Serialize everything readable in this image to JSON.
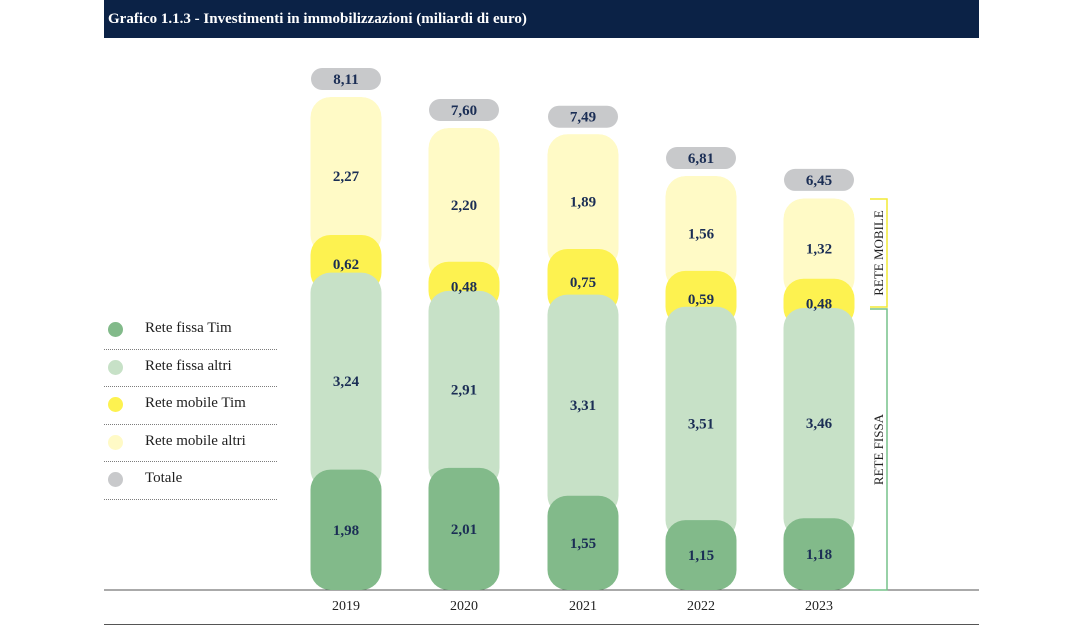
{
  "title": "Grafico 1.1.3 - Investimenti in immobilizzazioni (miliardi di euro)",
  "legend": [
    {
      "label": "Rete fissa Tim",
      "color": "#82ba8a"
    },
    {
      "label": "Rete fissa altri",
      "color": "#c7e1c7"
    },
    {
      "label": "Rete mobile Tim",
      "color": "#fdf250"
    },
    {
      "label": "Rete mobile altri",
      "color": "#fffac6"
    },
    {
      "label": "Totale",
      "color": "#c8c9cb"
    }
  ],
  "group_labels": {
    "mobile": "RETE MOBILE",
    "fissa": "RETE FISSA",
    "mobile_color": "#f2ea35",
    "fissa_color": "#77c28a"
  },
  "chart_data": {
    "type": "bar",
    "stacked": true,
    "title": "Grafico 1.1.3 - Investimenti in immobilizzazioni (miliardi di euro)",
    "categories": [
      "2019",
      "2020",
      "2021",
      "2022",
      "2023"
    ],
    "series": [
      {
        "name": "Rete fissa Tim",
        "values": [
          1.98,
          2.01,
          1.55,
          1.15,
          1.18
        ],
        "labels": [
          "1,98",
          "2,01",
          "1,55",
          "1,15",
          "1,18"
        ],
        "color": "#82ba8a"
      },
      {
        "name": "Rete fissa altri",
        "values": [
          3.24,
          2.91,
          3.31,
          3.51,
          3.46
        ],
        "labels": [
          "3,24",
          "2,91",
          "3,31",
          "3,51",
          "3,46"
        ],
        "color": "#c7e1c7"
      },
      {
        "name": "Rete mobile Tim",
        "values": [
          0.62,
          0.48,
          0.75,
          0.59,
          0.48
        ],
        "labels": [
          "0,62",
          "0,48",
          "0,75",
          "0,59",
          "0,48"
        ],
        "color": "#fdf250"
      },
      {
        "name": "Rete mobile altri",
        "values": [
          2.27,
          2.2,
          1.89,
          1.56,
          1.32
        ],
        "labels": [
          "2,27",
          "2,20",
          "1,89",
          "1,56",
          "1,32"
        ],
        "color": "#fffac6"
      }
    ],
    "totals": {
      "name": "Totale",
      "values": [
        8.11,
        7.6,
        7.49,
        6.81,
        6.45
      ],
      "labels": [
        "8,11",
        "7,60",
        "7,49",
        "6,81",
        "6,45"
      ],
      "color": "#c8c9cb"
    },
    "ylim": [
      0,
      8.11
    ],
    "xlabel": "",
    "ylabel": "",
    "grid": false,
    "legend_position": "left"
  }
}
